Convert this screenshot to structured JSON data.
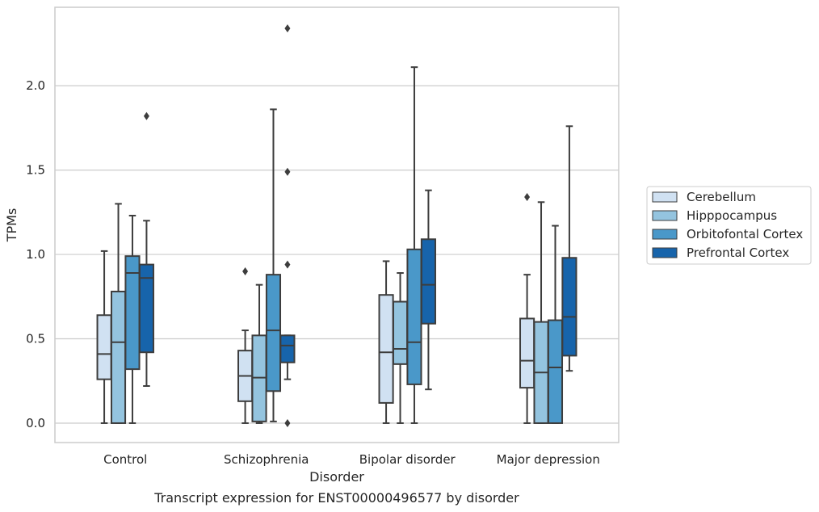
{
  "chart_data": {
    "type": "box",
    "xlabel": "Disorder",
    "ylabel": "TPMs",
    "caption": "Transcript expression for ENST00000496577 by disorder",
    "ylim": [
      -0.115,
      2.465
    ],
    "yticks": [
      0.0,
      0.5,
      1.0,
      1.5,
      2.0
    ],
    "ytick_labels": [
      "0.0",
      "0.5",
      "1.0",
      "1.5",
      "2.0"
    ],
    "grid": "horizontal",
    "legend_position": "right",
    "categories": [
      "Control",
      "Schizophrenia",
      "Bipolar disorder",
      "Major depression"
    ],
    "series": [
      {
        "name": "Cerebellum",
        "color": "#d0e1f2",
        "boxes": [
          {
            "q1": 0.26,
            "median": 0.41,
            "q3": 0.64,
            "whisker_low": 0.0,
            "whisker_high": 1.02,
            "outliers": []
          },
          {
            "q1": 0.13,
            "median": 0.28,
            "q3": 0.43,
            "whisker_low": 0.0,
            "whisker_high": 0.55,
            "outliers": [
              0.9
            ]
          },
          {
            "q1": 0.12,
            "median": 0.42,
            "q3": 0.76,
            "whisker_low": 0.0,
            "whisker_high": 0.96,
            "outliers": []
          },
          {
            "q1": 0.21,
            "median": 0.37,
            "q3": 0.62,
            "whisker_low": 0.0,
            "whisker_high": 0.88,
            "outliers": [
              1.34
            ]
          }
        ]
      },
      {
        "name": "Hipppocampus",
        "color": "#94c4df",
        "boxes": [
          {
            "q1": 0.0,
            "median": 0.48,
            "q3": 0.78,
            "whisker_low": 0.0,
            "whisker_high": 1.3,
            "outliers": []
          },
          {
            "q1": 0.01,
            "median": 0.27,
            "q3": 0.52,
            "whisker_low": 0.0,
            "whisker_high": 0.82,
            "outliers": []
          },
          {
            "q1": 0.35,
            "median": 0.44,
            "q3": 0.72,
            "whisker_low": 0.0,
            "whisker_high": 0.89,
            "outliers": []
          },
          {
            "q1": 0.0,
            "median": 0.3,
            "q3": 0.6,
            "whisker_low": 0.0,
            "whisker_high": 1.31,
            "outliers": []
          }
        ]
      },
      {
        "name": "Orbitofontal Cortex",
        "color": "#4a98c9",
        "boxes": [
          {
            "q1": 0.32,
            "median": 0.89,
            "q3": 0.99,
            "whisker_low": 0.0,
            "whisker_high": 1.23,
            "outliers": []
          },
          {
            "q1": 0.19,
            "median": 0.55,
            "q3": 0.88,
            "whisker_low": 0.01,
            "whisker_high": 1.86,
            "outliers": []
          },
          {
            "q1": 0.23,
            "median": 0.48,
            "q3": 1.03,
            "whisker_low": 0.0,
            "whisker_high": 2.11,
            "outliers": []
          },
          {
            "q1": 0.0,
            "median": 0.33,
            "q3": 0.61,
            "whisker_low": 0.0,
            "whisker_high": 1.17,
            "outliers": []
          }
        ]
      },
      {
        "name": "Prefrontal Cortex",
        "color": "#1764ab",
        "boxes": [
          {
            "q1": 0.42,
            "median": 0.86,
            "q3": 0.94,
            "whisker_low": 0.22,
            "whisker_high": 1.2,
            "outliers": [
              1.82
            ]
          },
          {
            "q1": 0.36,
            "median": 0.46,
            "q3": 0.52,
            "whisker_low": 0.26,
            "whisker_high": 0.52,
            "outliers": [
              0.0,
              0.94,
              1.49,
              2.34
            ]
          },
          {
            "q1": 0.59,
            "median": 0.82,
            "q3": 1.09,
            "whisker_low": 0.2,
            "whisker_high": 1.38,
            "outliers": []
          },
          {
            "q1": 0.4,
            "median": 0.63,
            "q3": 0.98,
            "whisker_low": 0.31,
            "whisker_high": 1.76,
            "outliers": []
          }
        ]
      }
    ]
  }
}
